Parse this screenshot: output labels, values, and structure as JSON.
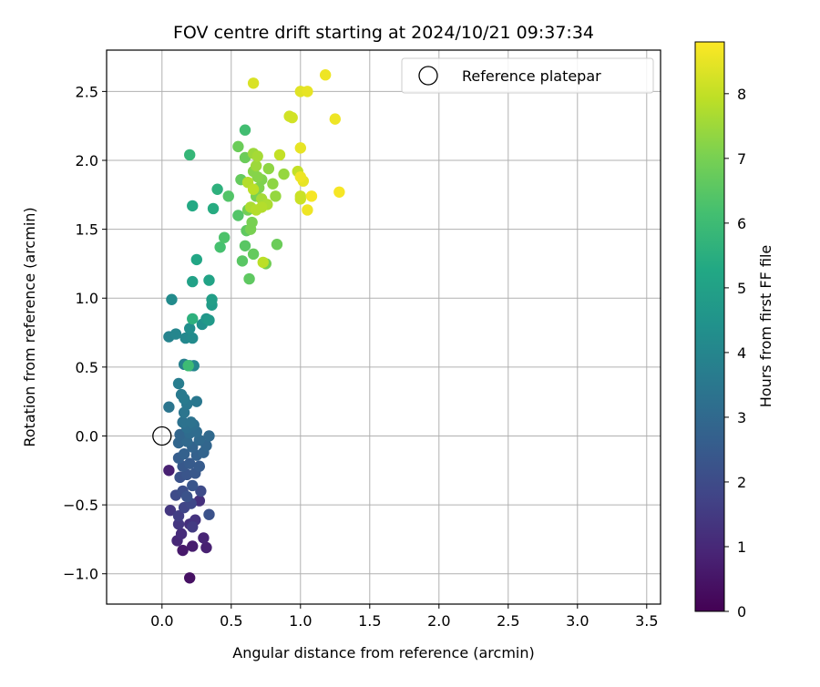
{
  "chart_data": {
    "type": "scatter",
    "title": "FOV centre drift starting at 2024/10/21 09:37:34",
    "xlabel": "Angular distance from reference (arcmin)",
    "ylabel": "Rotation from reference (arcmin)",
    "xlim": [
      -0.4,
      3.6
    ],
    "ylim": [
      -1.22,
      2.8
    ],
    "xticks": [
      0.0,
      0.5,
      1.0,
      1.5,
      2.0,
      2.5,
      3.0,
      3.5
    ],
    "xtick_labels": [
      "0.0",
      "0.5",
      "1.0",
      "1.5",
      "2.0",
      "2.5",
      "3.0",
      "3.5"
    ],
    "yticks": [
      -1.0,
      -0.5,
      0.0,
      0.5,
      1.0,
      1.5,
      2.0,
      2.5
    ],
    "ytick_labels": [
      "−1.0",
      "−0.5",
      "0.0",
      "0.5",
      "1.0",
      "1.5",
      "2.0",
      "2.5"
    ],
    "grid": true,
    "legend": {
      "placement": "top-right",
      "entries": [
        "Reference platepar"
      ]
    },
    "reference_point": {
      "x": 0.0,
      "y": 0.0,
      "label": "Reference platepar"
    },
    "colorbar": {
      "label": "Hours from first FF file",
      "colormap": "viridis",
      "range": [
        0,
        8.8
      ],
      "ticks": [
        0,
        1,
        2,
        3,
        4,
        5,
        6,
        7,
        8
      ],
      "tick_labels": [
        "0",
        "1",
        "2",
        "3",
        "4",
        "5",
        "6",
        "7",
        "8"
      ]
    },
    "points": [
      [
        0.2,
        -1.03,
        0.4
      ],
      [
        0.15,
        -0.83,
        0.6
      ],
      [
        0.22,
        -0.8,
        0.7
      ],
      [
        0.32,
        -0.81,
        0.8
      ],
      [
        0.3,
        -0.74,
        0.9
      ],
      [
        0.11,
        -0.76,
        1.0
      ],
      [
        0.14,
        -0.71,
        1.1
      ],
      [
        0.2,
        -0.64,
        1.2
      ],
      [
        0.24,
        -0.61,
        1.3
      ],
      [
        0.12,
        -0.64,
        1.4
      ],
      [
        0.22,
        -0.66,
        1.5
      ],
      [
        0.27,
        -0.47,
        1.2
      ],
      [
        0.05,
        -0.25,
        0.8
      ],
      [
        0.06,
        -0.54,
        1.4
      ],
      [
        0.12,
        -0.58,
        1.6
      ],
      [
        0.16,
        -0.52,
        1.8
      ],
      [
        0.21,
        -0.49,
        1.9
      ],
      [
        0.28,
        -0.4,
        2.0
      ],
      [
        0.34,
        -0.57,
        2.2
      ],
      [
        0.1,
        -0.43,
        2.0
      ],
      [
        0.15,
        -0.4,
        2.1
      ],
      [
        0.18,
        -0.44,
        2.2
      ],
      [
        0.22,
        -0.36,
        2.3
      ],
      [
        0.13,
        -0.3,
        2.2
      ],
      [
        0.18,
        -0.28,
        2.3
      ],
      [
        0.24,
        -0.27,
        2.4
      ],
      [
        0.15,
        -0.22,
        2.4
      ],
      [
        0.2,
        -0.2,
        2.5
      ],
      [
        0.27,
        -0.22,
        2.5
      ],
      [
        0.12,
        -0.16,
        2.6
      ],
      [
        0.16,
        -0.13,
        2.7
      ],
      [
        0.25,
        -0.14,
        2.7
      ],
      [
        0.3,
        -0.12,
        2.8
      ],
      [
        0.22,
        -0.08,
        2.8
      ],
      [
        0.32,
        -0.07,
        2.9
      ],
      [
        0.12,
        -0.05,
        2.9
      ],
      [
        0.18,
        -0.04,
        3.0
      ],
      [
        0.27,
        -0.03,
        3.0
      ],
      [
        0.13,
        0.01,
        2.9
      ],
      [
        0.2,
        0.02,
        3.1
      ],
      [
        0.25,
        0.03,
        3.1
      ],
      [
        0.34,
        0.0,
        3.0
      ],
      [
        0.18,
        0.06,
        3.2
      ],
      [
        0.23,
        0.08,
        3.2
      ],
      [
        0.15,
        0.1,
        3.3
      ],
      [
        0.21,
        0.1,
        3.3
      ],
      [
        0.05,
        0.21,
        3.4
      ],
      [
        0.16,
        0.17,
        3.4
      ],
      [
        0.18,
        0.23,
        3.5
      ],
      [
        0.25,
        0.25,
        3.5
      ],
      [
        0.16,
        0.27,
        3.6
      ],
      [
        0.14,
        0.3,
        3.6
      ],
      [
        0.12,
        0.38,
        3.7
      ],
      [
        0.16,
        0.52,
        3.8
      ],
      [
        0.2,
        0.51,
        3.9
      ],
      [
        0.23,
        0.51,
        4.0
      ],
      [
        0.05,
        0.72,
        3.9
      ],
      [
        0.1,
        0.74,
        4.0
      ],
      [
        0.17,
        0.71,
        4.1
      ],
      [
        0.22,
        0.71,
        4.2
      ],
      [
        0.2,
        0.78,
        4.3
      ],
      [
        0.07,
        0.99,
        4.2
      ],
      [
        0.29,
        0.81,
        4.4
      ],
      [
        0.32,
        0.85,
        4.6
      ],
      [
        0.34,
        0.84,
        4.7
      ],
      [
        0.36,
        0.95,
        4.8
      ],
      [
        0.36,
        0.99,
        4.9
      ],
      [
        0.22,
        1.12,
        5.0
      ],
      [
        0.34,
        1.13,
        5.1
      ],
      [
        0.25,
        1.28,
        5.2
      ],
      [
        0.22,
        1.67,
        5.3
      ],
      [
        0.22,
        0.85,
        5.6
      ],
      [
        0.19,
        0.51,
        6.0
      ],
      [
        0.37,
        1.65,
        5.4
      ],
      [
        0.4,
        1.79,
        5.6
      ],
      [
        0.2,
        2.04,
        5.8
      ],
      [
        0.6,
        2.22,
        6.1
      ],
      [
        0.42,
        1.37,
        6.2
      ],
      [
        0.45,
        1.44,
        6.3
      ],
      [
        0.48,
        1.74,
        6.4
      ],
      [
        0.55,
        1.6,
        6.4
      ],
      [
        0.58,
        1.27,
        6.5
      ],
      [
        0.6,
        1.38,
        6.5
      ],
      [
        0.61,
        1.49,
        6.6
      ],
      [
        0.63,
        1.14,
        6.6
      ],
      [
        0.66,
        1.32,
        6.7
      ],
      [
        0.57,
        1.86,
        6.7
      ],
      [
        0.6,
        2.02,
        6.8
      ],
      [
        0.55,
        2.1,
        6.8
      ],
      [
        0.62,
        1.64,
        6.9
      ],
      [
        0.65,
        1.55,
        7.0
      ],
      [
        0.64,
        1.5,
        7.0
      ],
      [
        0.68,
        1.74,
        7.0
      ],
      [
        0.7,
        1.8,
        7.1
      ],
      [
        0.72,
        1.86,
        7.1
      ],
      [
        0.66,
        1.92,
        7.2
      ],
      [
        0.69,
        1.88,
        7.2
      ],
      [
        0.75,
        1.25,
        6.9
      ],
      [
        0.83,
        1.39,
        6.8
      ],
      [
        0.77,
        1.94,
        7.3
      ],
      [
        0.8,
        1.83,
        7.3
      ],
      [
        0.82,
        1.74,
        7.4
      ],
      [
        0.88,
        1.9,
        7.4
      ],
      [
        0.68,
        1.96,
        7.5
      ],
      [
        0.66,
        2.05,
        7.5
      ],
      [
        0.69,
        2.03,
        7.6
      ],
      [
        0.72,
        1.72,
        7.6
      ],
      [
        0.76,
        1.68,
        7.7
      ],
      [
        0.64,
        1.66,
        7.7
      ],
      [
        0.68,
        1.64,
        7.8
      ],
      [
        0.72,
        1.66,
        7.8
      ],
      [
        0.62,
        1.84,
        7.8
      ],
      [
        0.66,
        1.79,
        7.9
      ],
      [
        0.73,
        1.26,
        7.9
      ],
      [
        0.85,
        2.04,
        8.0
      ],
      [
        0.98,
        1.92,
        8.0
      ],
      [
        1.0,
        1.72,
        8.1
      ],
      [
        1.0,
        1.74,
        8.1
      ],
      [
        0.92,
        2.32,
        8.2
      ],
      [
        0.94,
        2.31,
        8.2
      ],
      [
        0.66,
        2.56,
        8.3
      ],
      [
        1.0,
        2.5,
        8.4
      ],
      [
        1.05,
        2.5,
        8.5
      ],
      [
        1.18,
        2.62,
        8.6
      ],
      [
        1.25,
        2.3,
        8.6
      ],
      [
        1.0,
        2.09,
        8.5
      ],
      [
        1.02,
        1.85,
        8.5
      ],
      [
        1.0,
        1.88,
        8.6
      ],
      [
        1.05,
        1.64,
        8.6
      ],
      [
        1.08,
        1.74,
        8.7
      ],
      [
        1.28,
        1.77,
        8.7
      ]
    ]
  }
}
